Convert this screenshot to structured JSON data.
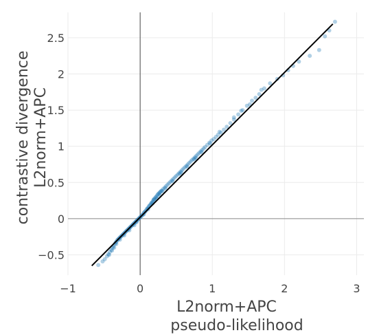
{
  "chart_data": {
    "type": "scatter",
    "xlabel_lines": [
      "L2norm+APC",
      "pseudo-likelihood"
    ],
    "ylabel_lines": [
      "contrastive divergence",
      "L2norm+APC"
    ],
    "xlim": [
      -1,
      3.1
    ],
    "ylim": [
      -0.78,
      2.85
    ],
    "x_ticks": [
      {
        "value": -1,
        "label": "−1"
      },
      {
        "value": 0,
        "label": "0"
      },
      {
        "value": 1,
        "label": "1"
      },
      {
        "value": 2,
        "label": "2"
      },
      {
        "value": 3,
        "label": "3"
      }
    ],
    "y_ticks": [
      {
        "value": -0.5,
        "label": "−0.5"
      },
      {
        "value": 0,
        "label": "0"
      },
      {
        "value": 0.5,
        "label": "0.5"
      },
      {
        "value": 1,
        "label": "1"
      },
      {
        "value": 1.5,
        "label": "1.5"
      },
      {
        "value": 2,
        "label": "2"
      },
      {
        "value": 2.5,
        "label": "2.5"
      }
    ],
    "grid": true,
    "legend": "none",
    "reference_line": {
      "x": [
        -0.67,
        2.67
      ],
      "y": [
        -0.65,
        2.69
      ],
      "color": "#000000"
    },
    "point_color": "#1f77b4",
    "series": [
      {
        "points": [
          [
            -0.58,
            -0.64
          ],
          [
            -0.52,
            -0.59
          ],
          [
            -0.49,
            -0.56
          ],
          [
            -0.46,
            -0.52
          ],
          [
            -0.44,
            -0.49
          ],
          [
            -0.42,
            -0.46
          ],
          [
            -0.4,
            -0.43
          ],
          [
            -0.38,
            -0.4
          ],
          [
            -0.37,
            -0.38
          ],
          [
            -0.35,
            -0.35
          ],
          [
            -0.34,
            -0.33
          ],
          [
            -0.33,
            -0.32
          ],
          [
            -0.32,
            -0.3
          ],
          [
            -0.31,
            -0.29
          ],
          [
            -0.3,
            -0.28
          ],
          [
            -0.29,
            -0.27
          ],
          [
            -0.28,
            -0.26
          ],
          [
            -0.27,
            -0.25
          ],
          [
            -0.26,
            -0.24
          ],
          [
            -0.25,
            -0.23
          ],
          [
            -0.24,
            -0.22
          ],
          [
            -0.23,
            -0.21
          ],
          [
            -0.22,
            -0.2
          ],
          [
            -0.21,
            -0.19
          ],
          [
            -0.2,
            -0.18
          ],
          [
            -0.19,
            -0.17
          ],
          [
            -0.18,
            -0.16
          ],
          [
            -0.17,
            -0.15
          ],
          [
            -0.16,
            -0.14
          ],
          [
            -0.15,
            -0.13
          ],
          [
            -0.14,
            -0.12
          ],
          [
            -0.13,
            -0.11
          ],
          [
            -0.12,
            -0.1
          ],
          [
            -0.11,
            -0.09
          ],
          [
            -0.1,
            -0.08
          ],
          [
            -0.09,
            -0.07
          ],
          [
            -0.08,
            -0.06
          ],
          [
            -0.07,
            -0.05
          ],
          [
            -0.06,
            -0.04
          ],
          [
            -0.05,
            -0.03
          ],
          [
            -0.04,
            -0.02
          ],
          [
            -0.03,
            -0.01
          ],
          [
            -0.02,
            0.0
          ],
          [
            -0.01,
            0.01
          ],
          [
            0.0,
            0.02
          ],
          [
            0.01,
            0.03
          ],
          [
            0.02,
            0.04
          ],
          [
            0.03,
            0.05
          ],
          [
            0.04,
            0.06
          ],
          [
            0.05,
            0.08
          ],
          [
            0.06,
            0.09
          ],
          [
            0.07,
            0.1
          ],
          [
            0.08,
            0.11
          ],
          [
            0.09,
            0.13
          ],
          [
            0.1,
            0.14
          ],
          [
            0.11,
            0.15
          ],
          [
            0.12,
            0.17
          ],
          [
            0.13,
            0.18
          ],
          [
            0.14,
            0.19
          ],
          [
            0.15,
            0.21
          ],
          [
            0.16,
            0.22
          ],
          [
            0.17,
            0.23
          ],
          [
            0.18,
            0.25
          ],
          [
            0.19,
            0.26
          ],
          [
            0.2,
            0.27
          ],
          [
            0.21,
            0.29
          ],
          [
            0.22,
            0.3
          ],
          [
            0.23,
            0.31
          ],
          [
            0.24,
            0.33
          ],
          [
            0.25,
            0.34
          ],
          [
            0.26,
            0.35
          ],
          [
            0.27,
            0.36
          ],
          [
            0.28,
            0.37
          ],
          [
            0.29,
            0.38
          ],
          [
            0.3,
            0.39
          ],
          [
            0.32,
            0.41
          ],
          [
            0.34,
            0.43
          ],
          [
            0.36,
            0.45
          ],
          [
            0.38,
            0.47
          ],
          [
            0.4,
            0.49
          ],
          [
            0.42,
            0.51
          ],
          [
            0.44,
            0.53
          ],
          [
            0.46,
            0.55
          ],
          [
            0.48,
            0.57
          ],
          [
            0.5,
            0.59
          ],
          [
            0.52,
            0.61
          ],
          [
            0.54,
            0.63
          ],
          [
            0.56,
            0.65
          ],
          [
            0.58,
            0.67
          ],
          [
            0.6,
            0.69
          ],
          [
            0.62,
            0.71
          ],
          [
            0.64,
            0.73
          ],
          [
            0.66,
            0.75
          ],
          [
            0.68,
            0.77
          ],
          [
            0.7,
            0.79
          ],
          [
            0.72,
            0.81
          ],
          [
            0.74,
            0.83
          ],
          [
            0.76,
            0.85
          ],
          [
            0.78,
            0.87
          ],
          [
            0.8,
            0.89
          ],
          [
            0.82,
            0.91
          ],
          [
            0.84,
            0.93
          ],
          [
            0.86,
            0.95
          ],
          [
            0.88,
            0.97
          ],
          [
            0.9,
            0.99
          ],
          [
            0.93,
            1.02
          ],
          [
            0.96,
            1.05
          ],
          [
            0.99,
            1.08
          ],
          [
            1.02,
            1.1
          ],
          [
            1.05,
            1.13
          ],
          [
            1.08,
            1.16
          ],
          [
            1.12,
            1.19
          ],
          [
            1.16,
            1.23
          ],
          [
            1.2,
            1.27
          ],
          [
            1.25,
            1.32
          ],
          [
            1.3,
            1.37
          ],
          [
            1.36,
            1.44
          ],
          [
            1.42,
            1.5
          ],
          [
            1.48,
            1.56
          ],
          [
            1.55,
            1.63
          ],
          [
            1.6,
            1.67
          ],
          [
            1.65,
            1.72
          ],
          [
            1.72,
            1.8
          ],
          [
            1.8,
            1.87
          ],
          [
            1.9,
            1.93
          ],
          [
            1.98,
            1.98
          ],
          [
            2.05,
            2.05
          ],
          [
            2.12,
            2.11
          ],
          [
            2.2,
            2.17
          ],
          [
            2.35,
            2.25
          ],
          [
            2.48,
            2.33
          ],
          [
            2.56,
            2.52
          ],
          [
            2.62,
            2.6
          ],
          [
            2.7,
            2.72
          ],
          [
            -0.43,
            -0.5
          ],
          [
            -0.39,
            -0.44
          ],
          [
            -0.36,
            -0.4
          ],
          [
            -0.33,
            -0.35
          ],
          [
            -0.28,
            -0.29
          ],
          [
            -0.22,
            -0.23
          ],
          [
            -0.15,
            -0.16
          ],
          [
            -0.08,
            -0.09
          ],
          [
            0.05,
            0.06
          ],
          [
            0.11,
            0.13
          ],
          [
            0.17,
            0.21
          ],
          [
            0.23,
            0.28
          ],
          [
            0.27,
            0.33
          ],
          [
            0.31,
            0.38
          ],
          [
            0.35,
            0.42
          ],
          [
            0.45,
            0.52
          ],
          [
            0.55,
            0.62
          ],
          [
            0.65,
            0.72
          ],
          [
            0.75,
            0.82
          ],
          [
            0.85,
            0.92
          ],
          [
            1.1,
            1.2
          ],
          [
            1.3,
            1.4
          ],
          [
            1.52,
            1.58
          ],
          [
            1.68,
            1.78
          ],
          [
            1.4,
            1.49
          ],
          [
            0.57,
            0.64
          ],
          [
            0.77,
            0.84
          ],
          [
            0.97,
            1.04
          ],
          [
            0.19,
            0.27
          ],
          [
            -0.05,
            -0.05
          ]
        ]
      }
    ]
  }
}
